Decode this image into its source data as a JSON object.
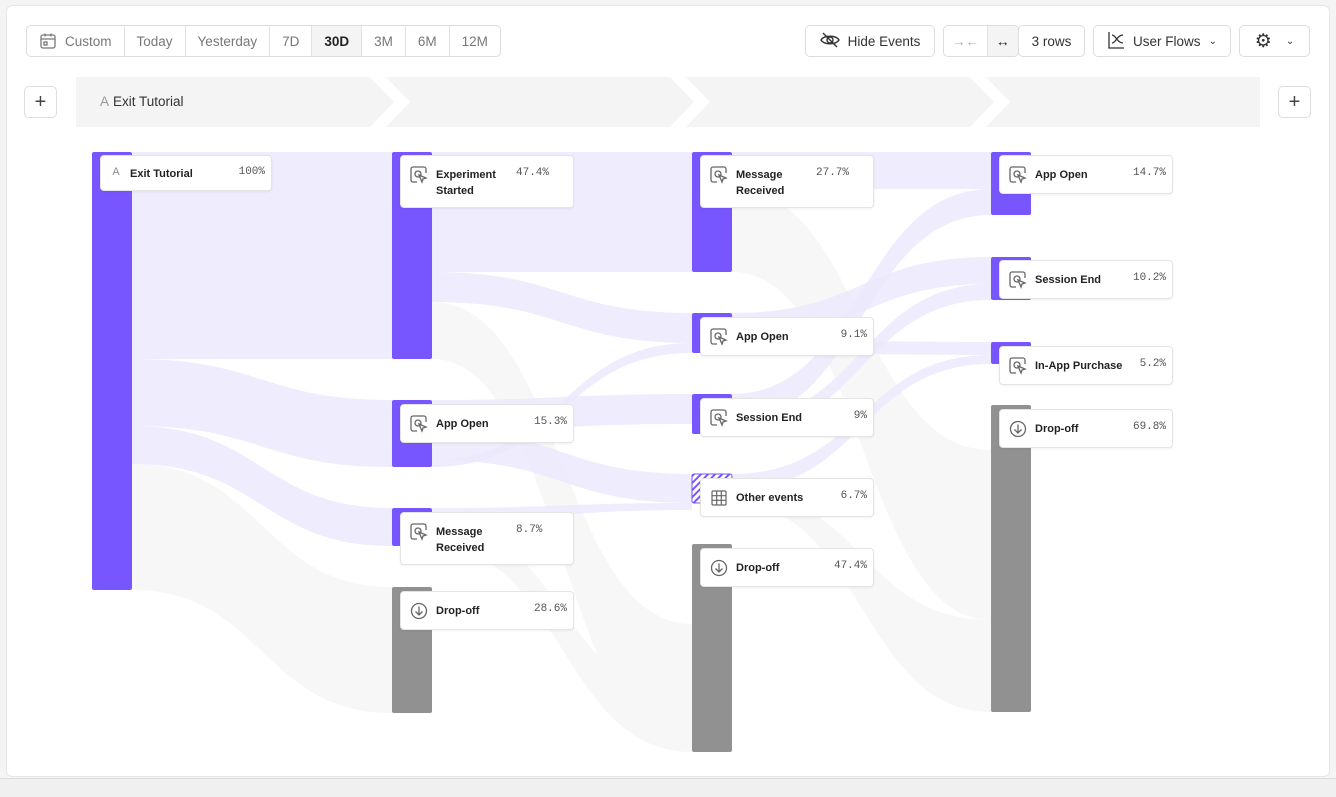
{
  "toolbar": {
    "date_ranges": [
      "Custom",
      "Today",
      "Yesterday",
      "7D",
      "30D",
      "3M",
      "6M",
      "12M"
    ],
    "selected_range": "30D",
    "hide_events": "Hide Events",
    "rows": "3 rows",
    "view": "User Flows"
  },
  "stage": {
    "first_event": "Exit Tutorial",
    "first_event_prefix": "A"
  },
  "colors": {
    "accent": "#7856ff",
    "dropoff": "#919191",
    "link": "#ece9fd"
  },
  "columns": [
    [
      {
        "name": "Exit Tutorial",
        "pct": "100%",
        "type": "anchor"
      }
    ],
    [
      {
        "name": "Experiment Started",
        "pct": "47.4%",
        "type": "event"
      },
      {
        "name": "App Open",
        "pct": "15.3%",
        "type": "event"
      },
      {
        "name": "Message Received",
        "pct": "8.7%",
        "type": "event"
      },
      {
        "name": "Drop-off",
        "pct": "28.6%",
        "type": "dropoff"
      }
    ],
    [
      {
        "name": "Message Received",
        "pct": "27.7%",
        "type": "event"
      },
      {
        "name": "App Open",
        "pct": "9.1%",
        "type": "event"
      },
      {
        "name": "Session End",
        "pct": "9%",
        "type": "event"
      },
      {
        "name": "Other events",
        "pct": "6.7%",
        "type": "other"
      },
      {
        "name": "Drop-off",
        "pct": "47.4%",
        "type": "dropoff"
      }
    ],
    [
      {
        "name": "App Open",
        "pct": "14.7%",
        "type": "event"
      },
      {
        "name": "Session End",
        "pct": "10.2%",
        "type": "event"
      },
      {
        "name": "In-App Purchase",
        "pct": "5.2%",
        "type": "event"
      },
      {
        "name": "Drop-off",
        "pct": "69.8%",
        "type": "dropoff"
      }
    ]
  ]
}
